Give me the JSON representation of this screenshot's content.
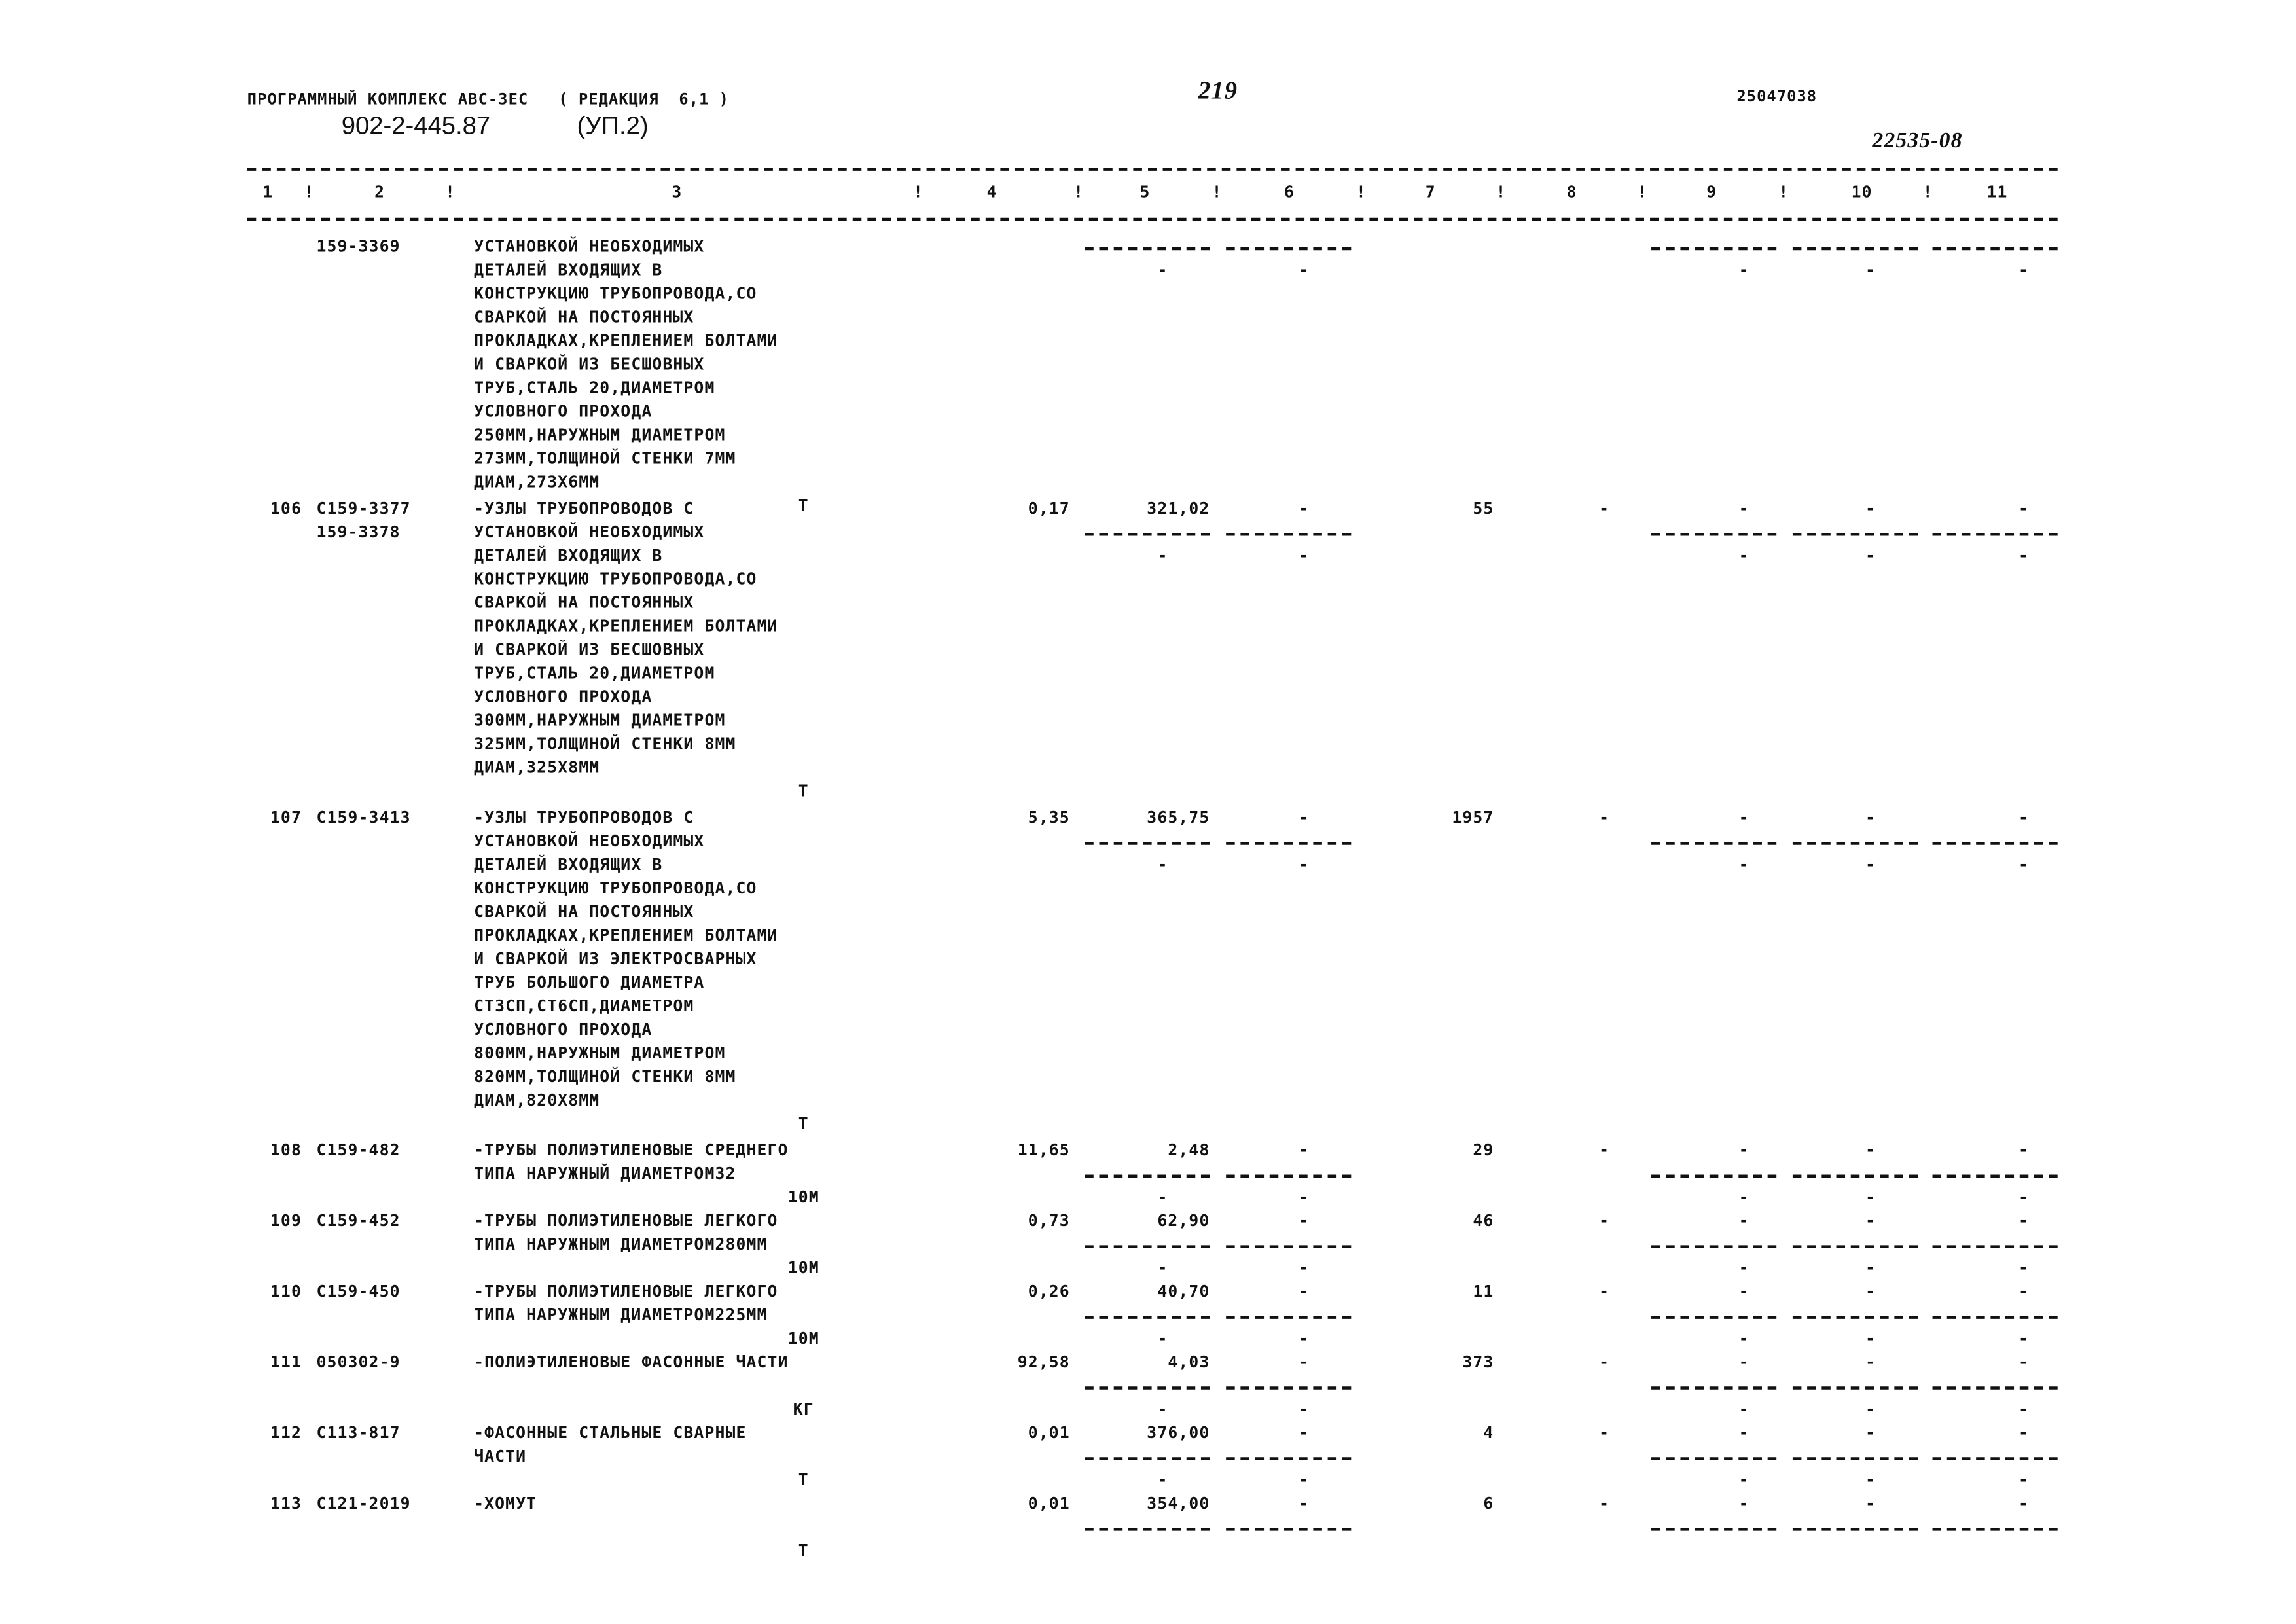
{
  "header": {
    "program": "ПРОГРАММНЫЙ КОМПЛЕКС АВС-3ЕС   ( РЕДАКЦИЯ  6,1 )",
    "doc_code": "902-2-445.87",
    "doc_part": "(УП.2)",
    "page_number": "219",
    "code_right": "25047038",
    "handwritten_number": "22535-08"
  },
  "columns": [
    "1",
    "2",
    "3",
    "4",
    "5",
    "6",
    "7",
    "8",
    "9",
    "10",
    "11"
  ],
  "rows": [
    {
      "num": "",
      "codes": [
        "159-3369"
      ],
      "desc": [
        "УСТАНОВКОЙ НЕОБХОДИМЫХ",
        "ДЕТАЛЕЙ ВХОДЯЩИХ В",
        "КОНСТРУКЦИЮ ТРУБОПРОВОДА,СО",
        "СВАРКОЙ НА ПОСТОЯННЫХ",
        "ПРОКЛАДКАХ,КРЕПЛЕНИЕМ БОЛТАМИ",
        "И СВАРКОЙ ИЗ БЕСШОВНЫХ",
        "ТРУБ,СТАЛЬ 20,ДИАМЕТРОМ",
        "УСЛОВНОГО ПРОХОДА",
        "250ММ,НАРУЖНЫМ ДИАМЕТРОМ",
        "273ММ,ТОЛЩИНОЙ СТЕНКИ 7ММ",
        "ДИАМ,273Х6ММ"
      ],
      "unit": "Т",
      "continued": true
    },
    {
      "num": "106",
      "codes": [
        "С159-3377",
        "159-3378"
      ],
      "desc": [
        "-УЗЛЫ ТРУБОПРОВОДОВ С",
        "УСТАНОВКОЙ НЕОБХОДИМЫХ",
        "ДЕТАЛЕЙ ВХОДЯЩИХ В",
        "КОНСТРУКЦИЮ ТРУБОПРОВОДА,СО",
        "СВАРКОЙ НА ПОСТОЯННЫХ",
        "ПРОКЛАДКАХ,КРЕПЛЕНИЕМ БОЛТАМИ",
        "И СВАРКОЙ ИЗ БЕСШОВНЫХ",
        "ТРУБ,СТАЛЬ 20,ДИАМЕТРОМ",
        "УСЛОВНОГО ПРОХОДА",
        "300ММ,НАРУЖНЫМ ДИАМЕТРОМ",
        "325ММ,ТОЛЩИНОЙ СТЕНКИ 8ММ",
        "ДИАМ,325Х8ММ"
      ],
      "unit": "Т",
      "c4": "0,17",
      "c5": "321,02",
      "c6": "-",
      "c7": "55",
      "c8": "-",
      "c9": "-",
      "c10": "-",
      "c11": "-"
    },
    {
      "num": "107",
      "codes": [
        "С159-3413"
      ],
      "desc": [
        "-УЗЛЫ ТРУБОПРОВОДОВ С",
        "УСТАНОВКОЙ НЕОБХОДИМЫХ",
        "ДЕТАЛЕЙ ВХОДЯЩИХ В",
        "КОНСТРУКЦИЮ ТРУБОПРОВОДА,СО",
        "СВАРКОЙ НА ПОСТОЯННЫХ",
        "ПРОКЛАДКАХ,КРЕПЛЕНИЕМ БОЛТАМИ",
        "И СВАРКОЙ ИЗ ЭЛЕКТРОСВАРНЫХ",
        "ТРУБ БОЛЬШОГО ДИАМЕТРА",
        "СТ3СП,СТ6СП,ДИАМЕТРОМ",
        "УСЛОВНОГО ПРОХОДА",
        "800ММ,НАРУЖНЫМ ДИАМЕТРОМ",
        "820ММ,ТОЛЩИНОЙ СТЕНКИ 8ММ",
        "ДИАМ,820Х8ММ"
      ],
      "unit": "Т",
      "c4": "5,35",
      "c5": "365,75",
      "c6": "-",
      "c7": "1957",
      "c8": "-",
      "c9": "-",
      "c10": "-",
      "c11": "-"
    },
    {
      "num": "108",
      "codes": [
        "С159-482"
      ],
      "desc": [
        "-ТРУБЫ ПОЛИЭТИЛЕНОВЫЕ СРЕДНЕГО",
        "ТИПА НАРУЖНЫЙ ДИАМЕТРОМ32"
      ],
      "unit": "10М",
      "c4": "11,65",
      "c5": "2,48",
      "c6": "-",
      "c7": "29",
      "c8": "-",
      "c9": "-",
      "c10": "-",
      "c11": "-"
    },
    {
      "num": "109",
      "codes": [
        "С159-452"
      ],
      "desc": [
        "-ТРУБЫ ПОЛИЭТИЛЕНОВЫЕ ЛЕГКОГО",
        "ТИПА НАРУЖНЫМ ДИАМЕТРОМ280ММ"
      ],
      "unit": "10М",
      "c4": "0,73",
      "c5": "62,90",
      "c6": "-",
      "c7": "46",
      "c8": "-",
      "c9": "-",
      "c10": "-",
      "c11": "-"
    },
    {
      "num": "110",
      "codes": [
        "С159-450"
      ],
      "desc": [
        "-ТРУБЫ ПОЛИЭТИЛЕНОВЫЕ ЛЕГКОГО",
        "ТИПА НАРУЖНЫМ ДИАМЕТРОМ225ММ"
      ],
      "unit": "10М",
      "c4": "0,26",
      "c5": "40,70",
      "c6": "-",
      "c7": "11",
      "c8": "-",
      "c9": "-",
      "c10": "-",
      "c11": "-"
    },
    {
      "num": "111",
      "codes": [
        "050302-9"
      ],
      "desc": [
        "-ПОЛИЭТИЛЕНОВЫЕ ФАСОННЫЕ ЧАСТИ"
      ],
      "unit": "КГ",
      "c4": "92,58",
      "c5": "4,03",
      "c6": "-",
      "c7": "373",
      "c8": "-",
      "c9": "-",
      "c10": "-",
      "c11": "-"
    },
    {
      "num": "112",
      "codes": [
        "С113-817"
      ],
      "desc": [
        "-ФАСОННЫЕ СТАЛЬНЫЕ СВАРНЫЕ",
        "ЧАСТИ"
      ],
      "unit": "Т",
      "c4": "0,01",
      "c5": "376,00",
      "c6": "-",
      "c7": "4",
      "c8": "-",
      "c9": "-",
      "c10": "-",
      "c11": "-"
    },
    {
      "num": "113",
      "codes": [
        "С121-2019"
      ],
      "desc": [
        "-ХОМУТ"
      ],
      "unit": "Т",
      "c4": "0,01",
      "c5": "354,00",
      "c6": "-",
      "c7": "6",
      "c8": "-",
      "c9": "-",
      "c10": "-",
      "c11": "-",
      "truncated": true
    }
  ]
}
